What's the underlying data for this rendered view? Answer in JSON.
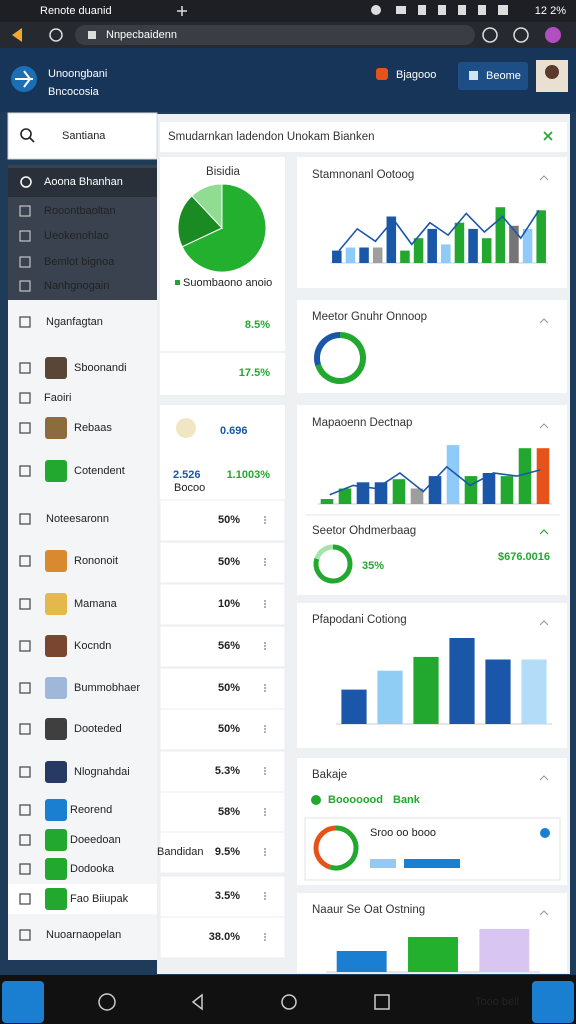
{
  "status_bar": {
    "title": "Renote duanid",
    "battery": "12 2%"
  },
  "browser": {
    "url": "Nnpecbaidenn"
  },
  "header": {
    "app_name": "Unoongbani",
    "subtitle": "Bncocosia",
    "user": "Bjagooo",
    "button": "Beome"
  },
  "search": {
    "query": "Santiana"
  },
  "banner": {
    "text": "Smudarnkan ladendon Unokam Bianken"
  },
  "sidebar": {
    "active": "Aoona Bhanhan",
    "submenu": [
      "Rooontbaoltan",
      "Ueokenohlao",
      "Bemlot bignoa",
      "Nanhgnogain"
    ],
    "items": [
      "Nganfagtan",
      "Sboonandi",
      "Faoiri",
      "Rebaas",
      "Cotendent",
      "Noteesaronn",
      "Rononoit",
      "Mamana",
      "Kocndn",
      "Bummobhaer",
      "Dooteded",
      "Nlognahdai",
      "Reorend",
      "Doeedoan",
      "Dodooka",
      "Fao Biiupak",
      "Nuoarnaopelan"
    ]
  },
  "summary": {
    "title": "Bisidia",
    "legend": "Suombaono anoio",
    "chart": {
      "type": "pie",
      "values": [
        68,
        20,
        12
      ],
      "colors": [
        "#23b02e",
        "#1a8a22",
        "#8fdc92"
      ]
    },
    "value_1": "8.5%",
    "value_2": "17.5%"
  },
  "stats": {
    "value_1": "0.696",
    "value_2": "2.526",
    "label": "Bocoo",
    "value_3": "1.1003%"
  },
  "table": {
    "rows": [
      "50%",
      "50%",
      "10%",
      "56%",
      "50%",
      "50%",
      "5.3%",
      "58%",
      "9.5%",
      "3.5%",
      "38.0%"
    ],
    "row_label": "Bandidan"
  },
  "cards": [
    {
      "title": "Stamnonanl Ootoog",
      "chart": {
        "type": "bar",
        "ylim": [
          0,
          100
        ],
        "values": [
          20,
          25,
          25,
          25,
          75,
          20,
          40,
          55,
          30,
          65,
          55,
          40,
          90,
          60,
          55,
          85
        ],
        "colors": [
          "#1a57a8",
          "#90caf9",
          "#1a57a8",
          "#9e9e9e",
          "#1a57a8",
          "#22a82e",
          "#22a82e",
          "#1a57a8",
          "#90caf9",
          "#22a82e",
          "#1a57a8",
          "#22a82e",
          "#22a82e",
          "#757575",
          "#90caf9",
          "#22a82e"
        ],
        "line": [
          20,
          55,
          35,
          70,
          30,
          65,
          45,
          80,
          50,
          75,
          40,
          85
        ]
      }
    },
    {
      "title": "Meetor Gnuhr Onnoop",
      "chart": {
        "type": "pie",
        "values": [
          70,
          30
        ],
        "colors": [
          "#22a82e",
          "#1a57a8"
        ]
      }
    },
    {
      "title": "Mapaoenn Dectnap",
      "chart": {
        "type": "bar",
        "ylim": [
          0,
          100
        ],
        "values": [
          8,
          25,
          35,
          35,
          40,
          25,
          45,
          95,
          45,
          50,
          45,
          90,
          90
        ],
        "colors": [
          "#22a82e",
          "#22a82e",
          "#1a57a8",
          "#1a57a8",
          "#22a82e",
          "#9e9e9e",
          "#1a57a8",
          "#90caf9",
          "#22a82e",
          "#1a57a8",
          "#22a82e",
          "#22a82e",
          "#e5531a"
        ],
        "line": [
          15,
          30,
          25,
          50,
          20,
          60,
          30,
          50,
          45,
          55
        ]
      },
      "subtitle": "Seetor Ohdmerbaag",
      "sub_chart": {
        "type": "pie",
        "values": [
          80,
          20
        ],
        "colors": [
          "#22a82e",
          "#a5e3a8"
        ]
      },
      "percent": "35%",
      "amount": "$676.0016"
    },
    {
      "title": "Pfapodani Cotiong",
      "chart": {
        "type": "bar",
        "ylim": [
          0,
          100
        ],
        "values": [
          40,
          62,
          78,
          100,
          75,
          75
        ],
        "colors": [
          "#1a57a8",
          "#90cdf4",
          "#22a82e",
          "#1a57a8",
          "#1a57a8",
          "#b3dcf8"
        ]
      }
    },
    {
      "title": "Bakaje",
      "tag": "Booooood",
      "link": "Bank",
      "note": "Sroo oo booo",
      "chart": {
        "type": "pie",
        "values": [
          55,
          45
        ],
        "colors": [
          "#22a82e",
          "#e5531a"
        ]
      }
    },
    {
      "title": "Naaur Se Oat Ostning",
      "chart": {
        "type": "bar",
        "ylim": [
          0,
          100
        ],
        "values": [
          42,
          70,
          86
        ],
        "colors": [
          "#1a7fd0",
          "#22b02e",
          "#d9c5f2"
        ]
      }
    }
  ],
  "nav": {
    "label": "Tooo bell"
  }
}
